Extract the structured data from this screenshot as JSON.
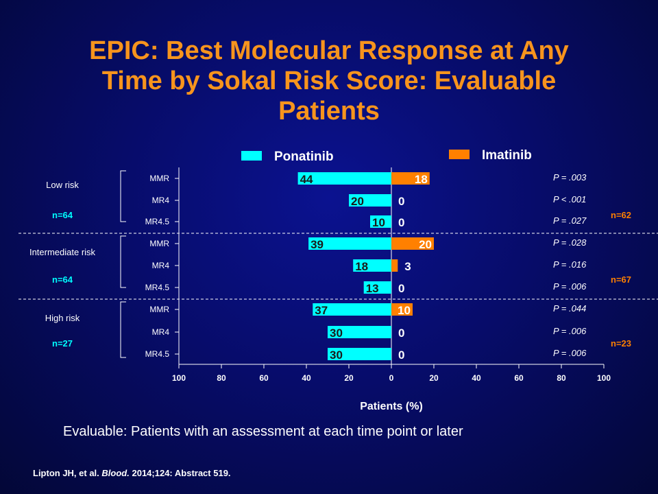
{
  "slide": {
    "title_line1": "EPIC: Best Molecular Response at Any",
    "title_line2": "Time by Sokal Risk Score: Evaluable",
    "title_line3": "Patients",
    "footnote": "Evaluable: Patients with an assessment at each time point or later",
    "citation_authors": "Lipton JH, et al.",
    "citation_journal": "Blood.",
    "citation_rest": "2014;124: Abstract 519."
  },
  "colors": {
    "ponatinib": "#00ffff",
    "imatinib": "#ff8000",
    "ponatinib_n": "#00ffff",
    "imatinib_n": "#ff8000",
    "axis": "#ffffff",
    "title": "#f7941d"
  },
  "chart_data": {
    "type": "bar",
    "orientation": "horizontal-butterfly",
    "xlabel": "Patients (%)",
    "xlim": [
      -100,
      100
    ],
    "x_ticks": [
      "100",
      "80",
      "60",
      "40",
      "20",
      "0",
      "20",
      "40",
      "60",
      "80",
      "100"
    ],
    "legend": {
      "placement": "top",
      "entries": [
        "Ponatinib",
        "Imatinib"
      ]
    },
    "series": [
      {
        "name": "Ponatinib",
        "values": [
          44,
          20,
          10,
          39,
          18,
          13,
          37,
          30,
          30
        ]
      },
      {
        "name": "Imatinib",
        "values": [
          18,
          0,
          0,
          20,
          3,
          0,
          10,
          0,
          0
        ]
      }
    ],
    "categories": [
      "MMR",
      "MR4",
      "MR4.5",
      "MMR",
      "MR4",
      "MR4.5",
      "MMR",
      "MR4",
      "MR4.5"
    ],
    "p_values": [
      "P = .003",
      "P < .001",
      "P = .027",
      "P = .028",
      "P = .016",
      "P = .006",
      "P = .044",
      "P = .006",
      "P = .006"
    ],
    "groups": [
      {
        "label": "Low risk",
        "ponatinib_n": "n=64",
        "imatinib_n": "n=62"
      },
      {
        "label": "Intermediate risk",
        "ponatinib_n": "n=64",
        "imatinib_n": "n=67"
      },
      {
        "label": "High risk",
        "ponatinib_n": "n=27",
        "imatinib_n": "n=23"
      }
    ]
  }
}
